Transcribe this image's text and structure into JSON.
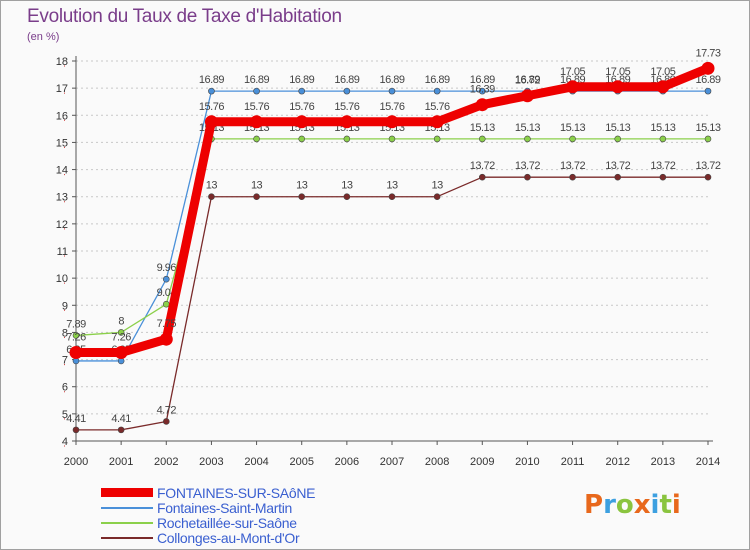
{
  "title": "Evolution du Taux de Taxe d'Habitation",
  "unit_label": "(en %)",
  "logo": {
    "text": "Proxiti",
    "letters": [
      "P",
      "r",
      "o",
      "x",
      "i",
      "t",
      "i"
    ],
    "colors": [
      "#e8681c",
      "#3da0e0",
      "#8ac43f",
      "#e8681c",
      "#3da0e0",
      "#8ac43f",
      "#e8681c"
    ]
  },
  "colors": {
    "axis": "#555555",
    "grid": "#c8c8c8",
    "tick_text": "#333333",
    "label_text": "#444444"
  },
  "chart_data": {
    "type": "line",
    "title": "Evolution du Taux de Taxe d'Habitation",
    "ylabel": "(en %)",
    "xlabel": "",
    "ylim": [
      4,
      18
    ],
    "yticks": [
      4,
      5,
      6,
      7,
      8,
      9,
      10,
      11,
      12,
      13,
      14,
      15,
      16,
      17,
      18
    ],
    "categories": [
      "2000",
      "2001",
      "2002",
      "2003",
      "2004",
      "2005",
      "2006",
      "2007",
      "2008",
      "2009",
      "2010",
      "2011",
      "2012",
      "2013",
      "2014"
    ],
    "grid": "horizontal dashed",
    "legend_position": "bottom-left",
    "series": [
      {
        "name": "Fontaines-Saint-Martin",
        "color": "#4a90d9",
        "weight": "thin",
        "values": [
          6.95,
          6.95,
          9.96,
          16.89,
          16.89,
          16.89,
          16.89,
          16.89,
          16.89,
          16.89,
          16.89,
          16.89,
          16.89,
          16.89,
          16.89
        ],
        "labels": [
          "6.95",
          "6.95",
          "9.96",
          "16.89",
          "16.89",
          "16.89",
          "16.89",
          "16.89",
          "16.89",
          "16.89",
          "16.89",
          "16.89",
          "16.89",
          "16.89",
          "16.89"
        ]
      },
      {
        "name": "Rochetaillée-sur-Saône",
        "color": "#8bd04a",
        "weight": "thin",
        "values": [
          7.89,
          8,
          9.04,
          15.13,
          15.13,
          15.13,
          15.13,
          15.13,
          15.13,
          15.13,
          15.13,
          15.13,
          15.13,
          15.13,
          15.13
        ],
        "labels": [
          "7.89",
          "8",
          "9.04",
          "15.13",
          "15.13",
          "15.13",
          "15.13",
          "15.13",
          "15.13",
          "15.13",
          "15.13",
          "15.13",
          "15.13",
          "15.13",
          "15.13"
        ]
      },
      {
        "name": "Collonges-au-Mont-d'Or",
        "color": "#7a2a2a",
        "weight": "thin",
        "values": [
          4.41,
          4.41,
          4.72,
          13,
          13,
          13,
          13,
          13,
          13,
          13.72,
          13.72,
          13.72,
          13.72,
          13.72,
          13.72
        ],
        "labels": [
          "4.41",
          "4.41",
          "4.72",
          "13",
          "13",
          "13",
          "13",
          "13",
          "13",
          "13.72",
          "13.72",
          "13.72",
          "13.72",
          "13.72",
          "13.72"
        ]
      },
      {
        "name": "FONTAINES-SUR-SAôNE",
        "color": "#ee0000",
        "weight": "thick",
        "values": [
          7.26,
          7.26,
          7.75,
          15.76,
          15.76,
          15.76,
          15.76,
          15.76,
          15.76,
          16.39,
          16.72,
          17.05,
          17.05,
          17.05,
          17.73
        ],
        "labels": [
          "7.26",
          "7.26",
          "7.75",
          "15.76",
          "15.76",
          "15.76",
          "15.76",
          "15.76",
          "15.76",
          "16.39",
          "16.72",
          "17.05",
          "17.05",
          "17.05",
          "17.73"
        ]
      }
    ],
    "legend_order": [
      "FONTAINES-SUR-SAôNE",
      "Fontaines-Saint-Martin",
      "Rochetaillée-sur-Saône",
      "Collonges-au-Mont-d'Or"
    ]
  }
}
